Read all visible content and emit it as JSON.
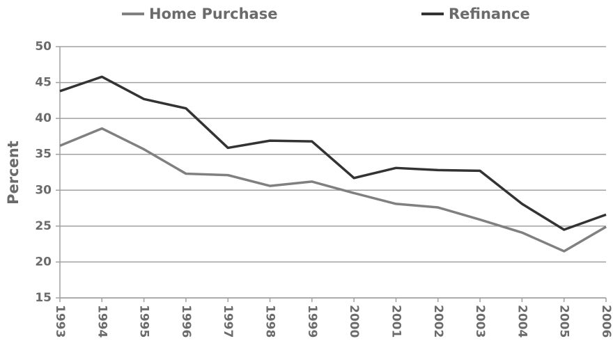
{
  "chart_data": {
    "type": "line",
    "y_label": "Percent",
    "x": [
      1993,
      1994,
      1995,
      1996,
      1997,
      1998,
      1999,
      2000,
      2001,
      2002,
      2003,
      2004,
      2005,
      2006
    ],
    "series": [
      {
        "name": "Home Purchase",
        "color": "#808080",
        "values": [
          36.2,
          38.6,
          35.7,
          32.3,
          32.1,
          30.6,
          31.2,
          29.6,
          28.1,
          27.6,
          25.9,
          24.1,
          21.5,
          24.9
        ]
      },
      {
        "name": "Refinance",
        "color": "#333333",
        "values": [
          43.8,
          45.8,
          42.7,
          41.4,
          35.9,
          36.9,
          36.8,
          31.7,
          33.1,
          32.8,
          32.7,
          28.1,
          24.5,
          26.6
        ]
      }
    ],
    "xlim": [
      1993,
      2006
    ],
    "xticks": [
      1993,
      1994,
      1995,
      1996,
      1997,
      1998,
      1999,
      2000,
      2001,
      2002,
      2003,
      2004,
      2005,
      2006
    ],
    "ylim": [
      15,
      50
    ],
    "yticks": [
      15,
      20,
      25,
      30,
      35,
      40,
      45,
      50
    ],
    "grid": true,
    "legend": "top"
  }
}
